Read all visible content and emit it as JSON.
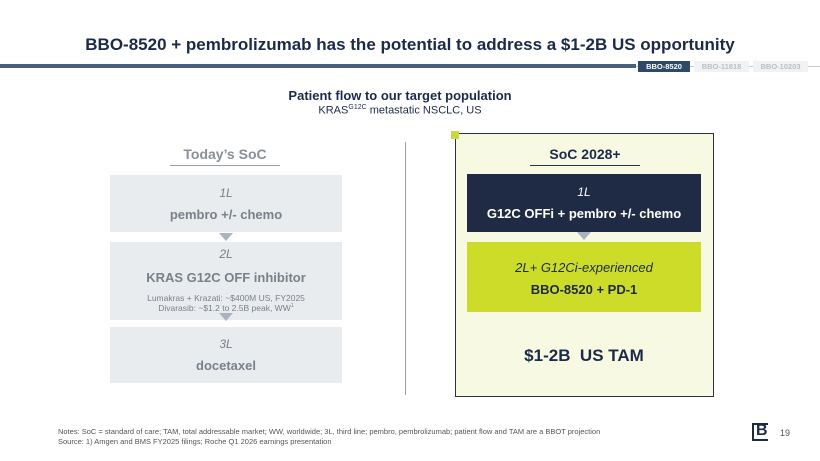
{
  "header": {
    "title": "BBO-8520 + pembrolizumab has the potential to address a $1-2B US opportunity",
    "tabs": [
      "BBO-8520",
      "BBO-11818",
      "BBO-10203"
    ]
  },
  "subtitle": {
    "title": "Patient flow to our target population",
    "population": {
      "text": "KRAS",
      "superscript": "G12C",
      "rest": " metastatic NSCLC, US"
    }
  },
  "left": {
    "heading": "Today’s SoC",
    "boxes": [
      {
        "line": "1L",
        "label": "pembro +/- chemo"
      },
      {
        "line": "2L",
        "label": "KRAS G12C OFF inhibitor",
        "details": [
          {
            "text": "Lumakras + Krazati: ~$400M US, FY2025"
          },
          {
            "text": "Divarasib: ~$1.2 to 2.5B peak, WW",
            "superscript": "1"
          }
        ]
      },
      {
        "line": "3L",
        "label": "docetaxel"
      }
    ]
  },
  "right": {
    "heading": "SoC 2028+",
    "boxes": [
      {
        "line": "1L",
        "label": "G12C OFFi + pembro +/- chemo"
      },
      {
        "line": "2L+ G12Ci-experienced",
        "label": "BBO-8520 + PD-1"
      }
    ],
    "summary": "$1-2B  US TAM"
  },
  "footer": {
    "notes": "Notes: SoC = standard of care; TAM, total addressable market; WW, worldwide; 3L, third line; pembro, pembrolizumab; patient flow and TAM are a BBOT projection",
    "source": "Source: 1) Amgen and BMS FY2025 filings; Roche Q1 2026 earnings presentation",
    "logo": "B",
    "page": "19"
  }
}
